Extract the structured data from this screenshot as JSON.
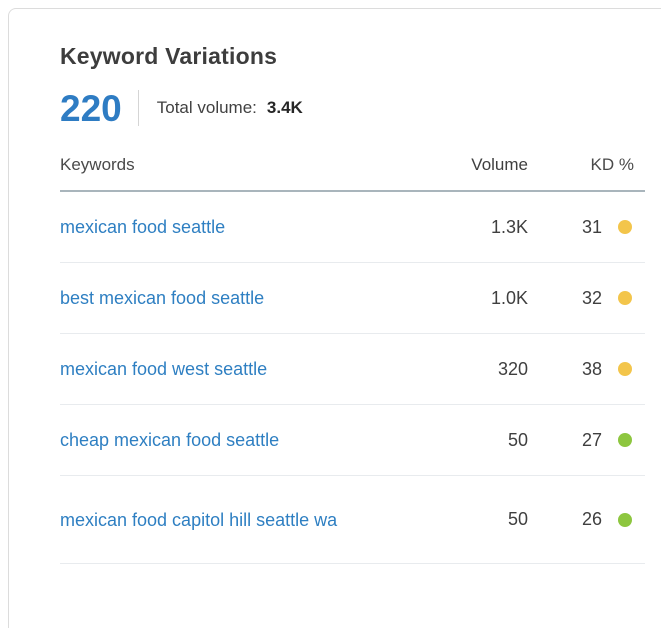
{
  "card": {
    "title": "Keyword Variations",
    "total_count": "220",
    "total_volume_label": "Total volume:",
    "total_volume_value": "3.4K"
  },
  "table": {
    "headers": {
      "keyword": "Keywords",
      "volume": "Volume",
      "kd": "KD %"
    },
    "rows": [
      {
        "keyword": "mexican food seattle",
        "volume": "1.3K",
        "kd": "31",
        "kd_level": "medium"
      },
      {
        "keyword": "best mexican food seattle",
        "volume": "1.0K",
        "kd": "32",
        "kd_level": "medium"
      },
      {
        "keyword": "mexican food west seattle",
        "volume": "320",
        "kd": "38",
        "kd_level": "medium"
      },
      {
        "keyword": "cheap mexican food seattle",
        "volume": "50",
        "kd": "27",
        "kd_level": "easy"
      },
      {
        "keyword": "mexican food capitol hill seattle wa",
        "volume": "50",
        "kd": "26",
        "kd_level": "easy"
      }
    ]
  },
  "colors": {
    "accent_blue": "#2e7cc3",
    "link_blue": "#2e7fc2",
    "kd_medium_dot": "#f3c54b",
    "kd_easy_dot": "#8dc63f"
  }
}
